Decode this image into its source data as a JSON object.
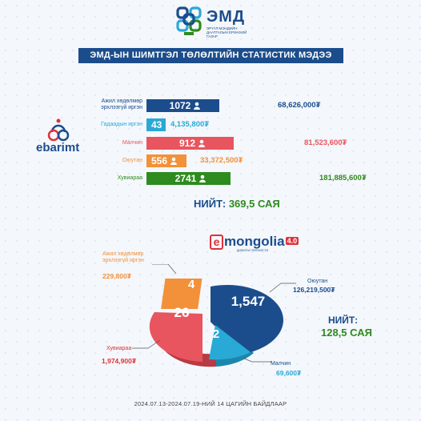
{
  "header": {
    "logo_text": "ЭМД",
    "logo_subtitle": "ЭРҮҮЛ МЭНДИЙН ДААТГАЛЫН ЕРӨНХИЙ ГАЗАР",
    "title": "ЭМД-ЫН ШИМТГЭЛ ТӨЛӨЛТИЙН СТАТИСТИК МЭДЭЭ"
  },
  "ebarimt": {
    "logo_text": "ebarimt",
    "rows": [
      {
        "label": "Ажил хөдөлмөр эрхлээгүй иргэн",
        "count": "1072",
        "amount": "68,626,000₮",
        "color": "#1b4d8c",
        "label_color": "#1b4d8c"
      },
      {
        "label": "Гадаадын иргэн",
        "count": "43",
        "amount": "4,135,800₮",
        "color": "#29a9d6",
        "label_color": "#29a9d6"
      },
      {
        "label": "Малчин",
        "count": "912",
        "amount": "81,523,600₮",
        "color": "#e8555f",
        "label_color": "#e8555f"
      },
      {
        "label": "Оюутан",
        "count": "556",
        "amount": "33,372,500₮",
        "color": "#f2913a",
        "label_color": "#f2913a"
      },
      {
        "label": "Хувиараа",
        "count": "2741",
        "amount": "181,885,600₮",
        "color": "#2e8b1f",
        "label_color": "#2e8b1f"
      }
    ],
    "total_label": "НИЙТ:",
    "total_value": "369,5 САЯ"
  },
  "emongolia": {
    "logo_e": "e",
    "logo_text": "mongolia",
    "logo_version": "4.0",
    "logo_subtitle": "ДИЖИТАЛ ҮЙЛЧИЛГЭЭ",
    "segments": [
      {
        "label": "Оюутан",
        "count": "1,547",
        "amount": "126,219,500₮",
        "color": "#1b4d8c",
        "amount_color": "#1b4d8c"
      },
      {
        "label": "Малчин",
        "count": "2",
        "amount": "69,600₮",
        "color": "#29a9d6",
        "amount_color": "#29a9d6"
      },
      {
        "label": "Хувиараа",
        "count": "26",
        "amount": "1,974,900₮",
        "color": "#e8555f",
        "amount_color": "#e0313a"
      },
      {
        "label": "Ажил хөдөлмөр эрхлээгүй иргэн",
        "count": "4",
        "amount": "229,800₮",
        "color": "#f2913a",
        "amount_color": "#f2913a"
      }
    ],
    "total_label": "НИЙТ:",
    "total_value": "128,5 САЯ"
  },
  "footer": "2024.07.13-2024.07.19-НИЙ 14 ЦАГИЙН  БАЙДЛААР"
}
